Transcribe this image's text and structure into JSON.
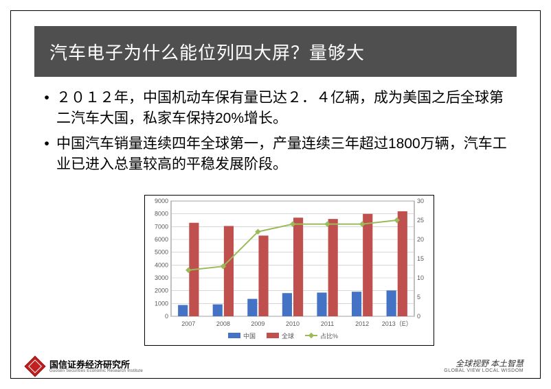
{
  "title": "汽车电子为什么能位列四大屏？量够大",
  "bullets": [
    "２０１２年，中国机动车保有量已达２．４亿辆，成为美国之后全球第二汽车大国，私家车保持20%增长。",
    "中国汽车销量连续四年全球第一，产量连续三年超过1800万辆，汽车工业已进入总量较高的平稳发展阶段。"
  ],
  "chart": {
    "type": "bar+line",
    "categories": [
      "2007",
      "2008",
      "2009",
      "2010",
      "2011",
      "2012",
      "2013（E）"
    ],
    "series": [
      {
        "name": "中国",
        "type": "bar",
        "axis": "left",
        "color": "#4472c4",
        "values": [
          880,
          930,
          1360,
          1810,
          1850,
          1920,
          2020
        ]
      },
      {
        "name": "全球",
        "type": "bar",
        "axis": "left",
        "color": "#c0504d",
        "values": [
          7300,
          7050,
          6300,
          7700,
          7600,
          8000,
          8200
        ]
      },
      {
        "name": "占比%",
        "type": "line",
        "axis": "right",
        "color": "#9bbb59",
        "values": [
          12,
          13,
          22,
          24,
          24,
          24,
          25
        ]
      }
    ],
    "y_left": {
      "min": 0,
      "max": 9000,
      "step": 1000
    },
    "y_right": {
      "min": 0,
      "max": 30,
      "step": 5
    },
    "legend_position": "bottom",
    "plot_bg": "#ffffff",
    "grid_color": "#bfbfbf",
    "axis_font_size": 9,
    "legend_font_size": 9
  },
  "footer": {
    "logo_cn": "国信证券经济研究所",
    "logo_en": "Guosen Securities Economic Research Institute",
    "right_cn": "全球视野  本土智慧",
    "right_en": "GLOBAL VIEW   LOCAL WISDOM"
  }
}
